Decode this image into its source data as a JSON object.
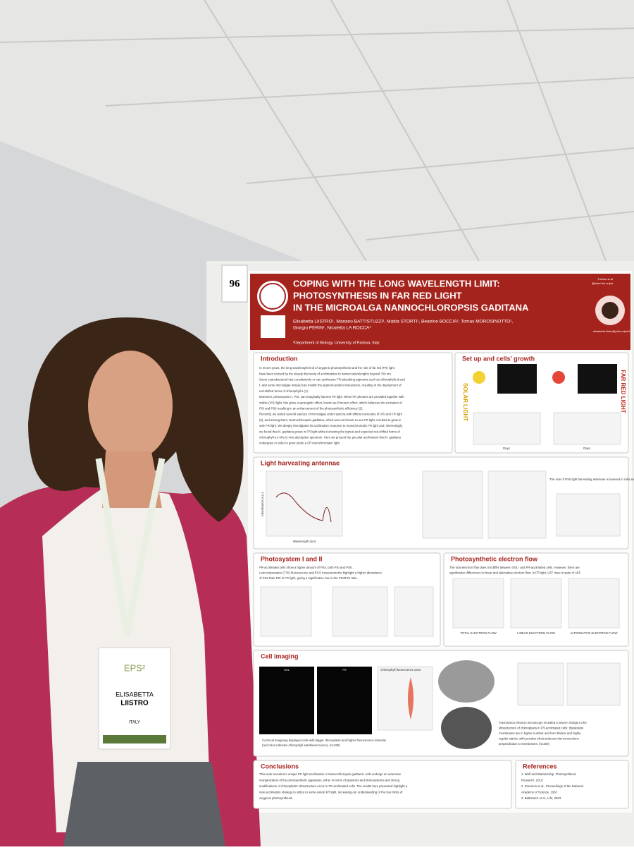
{
  "poster": {
    "number": "96",
    "title": [
      "COPING WITH THE LONG WAVELENGTH LIMIT:",
      "PHOTOSYNTHESIS IN FAR RED LIGHT",
      "IN THE MICROALGA NANNOCHLOROPSIS GADITANA"
    ],
    "authors": [
      "Elisabetta LIISTRO¹, Mariano BATTISTUZZI¹, Mattia STORTI¹, Beatrice BOCCIA¹, Tomas MOROSINOTTO¹,",
      "Giorgio PERIN¹, Nicoletta LA ROCCA¹"
    ],
    "affiliation": "¹Department of Biology, University of Padova, Italy",
    "follow": [
      "Follow us at",
      "@plant.lab.unipd"
    ],
    "email": "elisabetta.liistro@phd.unipd.it",
    "intro": {
      "heading": "Introduction",
      "lines": [
        "In recent years, the long wavelength limit of oxygenic photosynthesis and the role of far red (FR) light",
        "have been revised by the steady discovery of acclimations to harvest wavelengths beyond 700 nm.",
        "Some cyanobacteria host constitutively or can synthesize FR-absorbing pigments such as chlorophylls d and",
        "f, and some microalgae instead can modify the pigment-protein interactions, resulting in the deployment of",
        "red-shifted forms of chlorophyll a (1).",
        "Moreover, photosystem I, PSI, can marginally harvest FR light. When FR photons are provided together with",
        "visible (VIS) light, this gives a synergistic effect, known as Emerson effect, which balances the excitation of",
        "PSI and PSII resulting in an enhancement of the photosynthetic efficiency (2).",
        "Recently, we tested several species of microalgae under spectra with different amounts of VIS and FR light",
        "(3), and among them, Nannochloropsis gaditana, which was not known to use FR light, resulted to grow in",
        "sole FR light. We deeply investigated its acclimation response to monochromatic FR light and, interestingly,",
        "we found that N. gaditana grows in FR light without showing the typical and expected red-shifted forms of",
        "chlorophyll a in the in vivo absorption spectrum. Here we present the peculiar acclimation that N. gaditana",
        "undergoes in order to grow under a FR monochromatic light."
      ]
    },
    "setup": {
      "heading": "Set up and cells' growth",
      "left": "SOLAR LIGHT",
      "right": "FAR RED LIGHT",
      "axis": "Days"
    },
    "antenna": {
      "heading": "Light harvesting antennae",
      "xlabel": "Wavelength (nm)",
      "ylabel": "Absorbance (a.u.)",
      "note": "The size of PSII light harvesting antennae is lowered in cells exposed to FR light."
    },
    "photosystems": {
      "heading": "Photosystem I and II",
      "lines": [
        "FR-acclimated cells show a higher amount of PSs, both PSI and PSII.",
        "Low temperature (77K) fluorescence and ECS measurements highlight a higher abundance",
        "of PSII than PSI in FR light, giving a significative rise in the PSII/PSI ratio."
      ]
    },
    "electron": {
      "heading": "Photosynthetic electron flow",
      "lines": [
        "The total electron flow does not differ between SOL- and FR-acclimated cells. However, there are",
        "significative differences in linear and alternative electron flow: in FR light, LEF rises in spite of AEF."
      ],
      "panels": [
        "TOTAL ELECTRON FLOW",
        "LINEAR ELECTRON FLOW",
        "ALTERNATIVE ELECTRON FLOW"
      ]
    },
    "imaging": {
      "heading": "Cell imaging",
      "panels": [
        "SOL",
        "FR"
      ],
      "chart": "Chlorophyll fluorescence area",
      "lines": [
        "Confocal imagining displayed cells with bigger chloroplasts and higher fluorescence intensity",
        "(red color indicates chlorophyll autofluorescence). (n≥150)"
      ],
      "tem": [
        "Trasmission electron microscopy revealed a severe change in the",
        "ultrastructure of chloroplasts in FR-acclimated cells: thylakoidal",
        "membranes are in higher number and form thicker and highly",
        "regular stacks, with peculiar electrondense interconnections",
        "perpendicular to membranes. (n≥300)"
      ]
    },
    "conclusions": {
      "heading": "Conclusions",
      "lines": [
        "This work revealed a unique FR light acclimation in Nannochloropsis gaditana: cells undergo an extensive",
        "reorganization of the photosynthetic apparatus, either in terms of pigments and photosystems and strong",
        "modifications of chloroplasts' ultrastructure occur in FR acclimated cells. The results here presented highlight a",
        "new acclimation strategy to utilize to some extent FR light, increasing our understanding of the true limits of",
        "oxygenic photosynthesis."
      ]
    },
    "references": {
      "heading": "References",
      "lines": [
        "1. Wolf and Blankenship, Photosynthesis",
        "Research, 2019",
        "2. Emerson et al., Proceedings of the National",
        "Academy of Science, 1957",
        "3. Battistuzzi et al., Life, 2023"
      ]
    }
  },
  "badge": {
    "event": "EPS²",
    "first": "ELISABETTA",
    "last": "LIISTRO",
    "country": "ITALY"
  }
}
